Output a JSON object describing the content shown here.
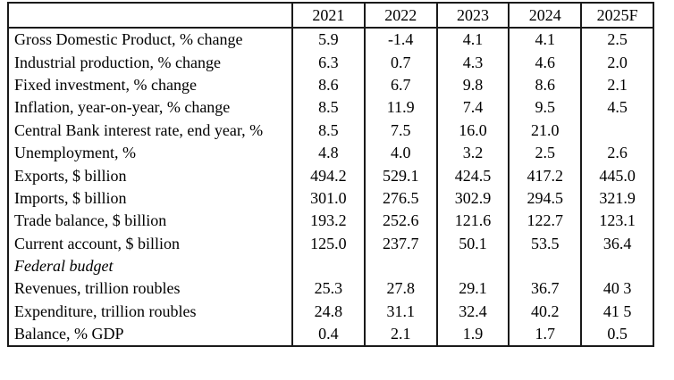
{
  "table": {
    "columns": [
      "",
      "2021",
      "2022",
      "2023",
      "2024",
      "2025F"
    ],
    "rows": [
      {
        "label": "Gross Domestic Product, % change",
        "values": [
          "5.9",
          "-1.4",
          "4.1",
          "4.1",
          "2.5"
        ],
        "italic": false
      },
      {
        "label": "Industrial production, % change",
        "values": [
          "6.3",
          "0.7",
          "4.3",
          "4.6",
          "2.0"
        ],
        "italic": false
      },
      {
        "label": "Fixed investment, % change",
        "values": [
          "8.6",
          "6.7",
          "9.8",
          "8.6",
          "2.1"
        ],
        "italic": false
      },
      {
        "label": "Inflation, year-on-year, % change",
        "values": [
          "8.5",
          "11.9",
          "7.4",
          "9.5",
          "4.5"
        ],
        "italic": false
      },
      {
        "label": "Central Bank interest rate, end year, %",
        "values": [
          "8.5",
          "7.5",
          "16.0",
          "21.0",
          ""
        ],
        "italic": false
      },
      {
        "label": "Unemployment, %",
        "values": [
          "4.8",
          "4.0",
          "3.2",
          "2.5",
          "2.6"
        ],
        "italic": false
      },
      {
        "label": "Exports, $ billion",
        "values": [
          "494.2",
          "529.1",
          "424.5",
          "417.2",
          "445.0"
        ],
        "italic": false
      },
      {
        "label": "Imports, $ billion",
        "values": [
          "301.0",
          "276.5",
          "302.9",
          "294.5",
          "321.9"
        ],
        "italic": false
      },
      {
        "label": "Trade balance, $ billion",
        "values": [
          "193.2",
          "252.6",
          "121.6",
          "122.7",
          "123.1"
        ],
        "italic": false
      },
      {
        "label": "Current account, $ billion",
        "values": [
          "125.0",
          "237.7",
          "50.1",
          "53.5",
          "36.4"
        ],
        "italic": false
      },
      {
        "label": "Federal budget",
        "values": [
          "",
          "",
          "",
          "",
          ""
        ],
        "italic": true
      },
      {
        "label": "Revenues, trillion roubles",
        "values": [
          "25.3",
          "27.8",
          "29.1",
          "36.7",
          "40 3"
        ],
        "italic": false
      },
      {
        "label": "Expenditure, trillion roubles",
        "values": [
          "24.8",
          "31.1",
          "32.4",
          "40.2",
          "41 5"
        ],
        "italic": false
      },
      {
        "label": "Balance, % GDP",
        "values": [
          "0.4",
          "2.1",
          "1.9",
          "1.7",
          "0.5"
        ],
        "italic": false
      }
    ]
  },
  "colors": {
    "border": "#1a1a1a",
    "text": "#000000",
    "background": "#ffffff"
  }
}
